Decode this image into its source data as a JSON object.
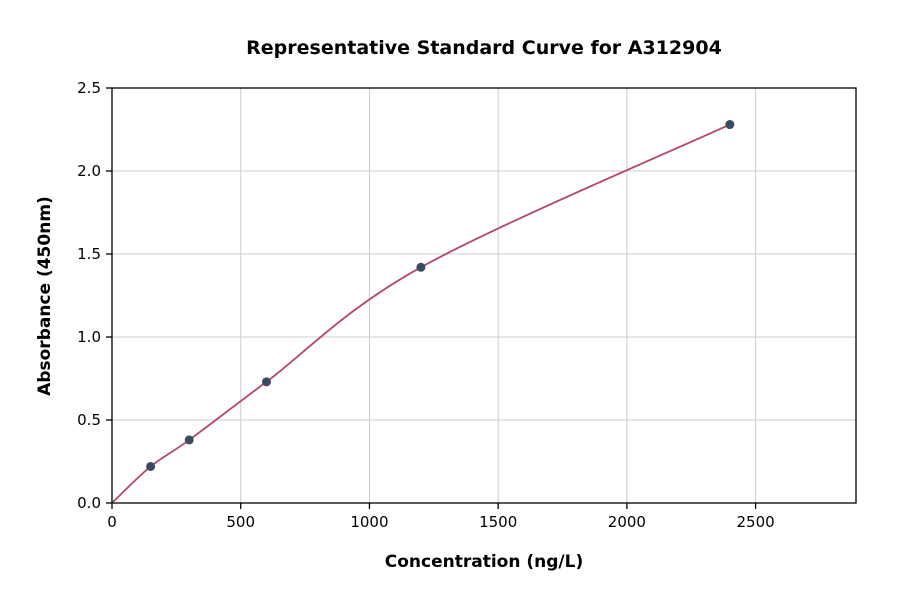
{
  "chart_data": {
    "type": "scatter",
    "title": "Representative Standard Curve for A312904",
    "xlabel": "Concentration (ng/L)",
    "ylabel": "Absorbance (450nm)",
    "xlim": [
      0,
      2890
    ],
    "ylim": [
      0,
      2.5
    ],
    "x_ticks": [
      0,
      500,
      1000,
      1500,
      2000,
      2500
    ],
    "x_tick_labels": [
      "0",
      "500",
      "1000",
      "1500",
      "2000",
      "2500"
    ],
    "y_ticks": [
      0.0,
      0.5,
      1.0,
      1.5,
      2.0,
      2.5
    ],
    "y_tick_labels": [
      "0.0",
      "0.5",
      "1.0",
      "1.5",
      "2.0",
      "2.5"
    ],
    "grid": true,
    "points": [
      {
        "x": 150,
        "y": 0.22
      },
      {
        "x": 300,
        "y": 0.38
      },
      {
        "x": 600,
        "y": 0.73
      },
      {
        "x": 1200,
        "y": 1.42
      },
      {
        "x": 2400,
        "y": 2.28
      }
    ],
    "curve_through": [
      {
        "x": 0,
        "y": 0.0
      },
      {
        "x": 150,
        "y": 0.22
      },
      {
        "x": 300,
        "y": 0.38
      },
      {
        "x": 600,
        "y": 0.73
      },
      {
        "x": 1200,
        "y": 1.42
      },
      {
        "x": 2400,
        "y": 2.28
      }
    ],
    "colors": {
      "curve": "#b5476b",
      "marker": "#3a4a63",
      "grid": "#cccccc",
      "spine": "#000000"
    },
    "legend_position": "none"
  }
}
